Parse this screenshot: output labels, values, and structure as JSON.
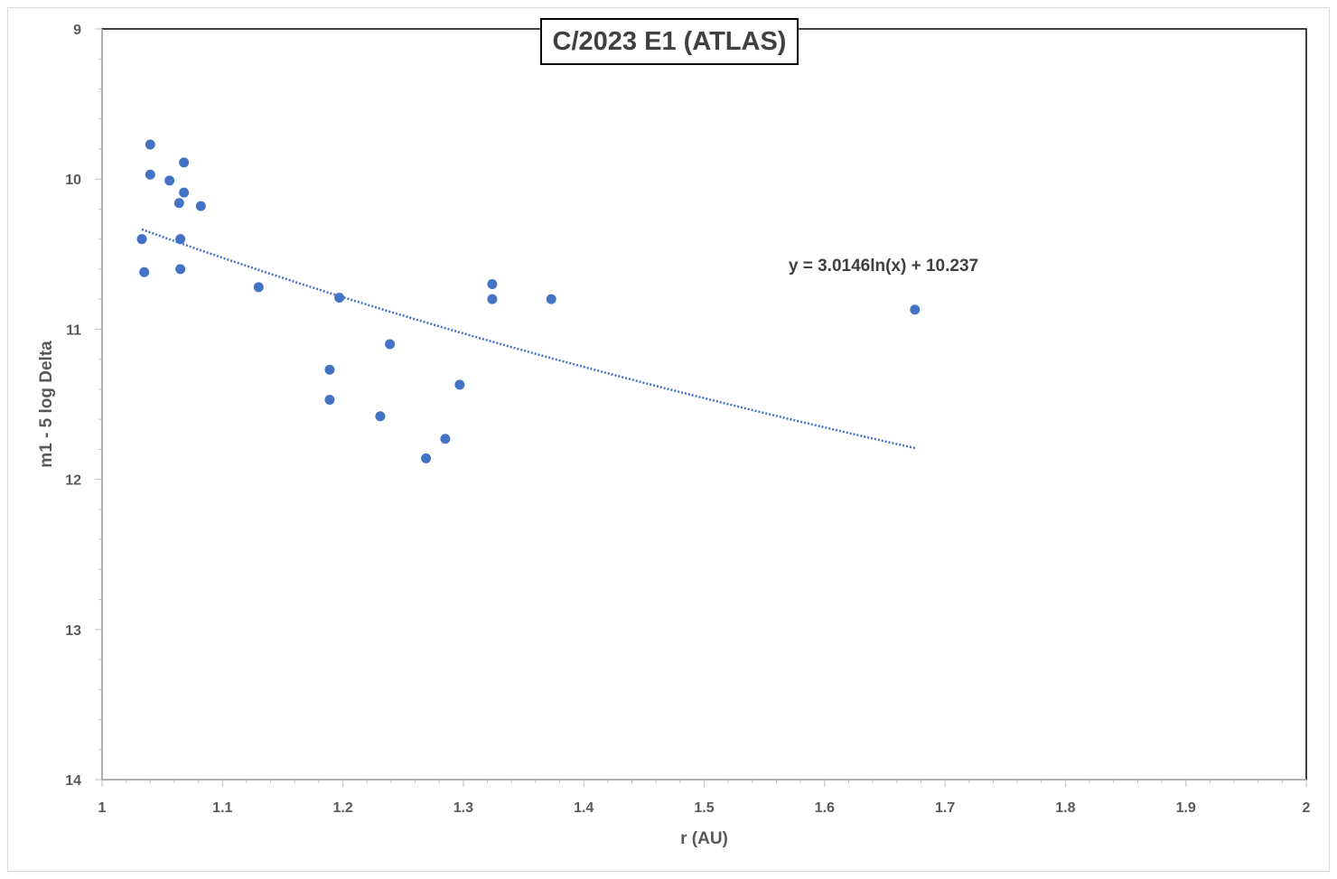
{
  "chart_data": {
    "type": "scatter",
    "title": "C/2023 E1 (ATLAS)",
    "xlabel": "r (AU)",
    "ylabel": "m1 - 5 log Delta",
    "xlim": [
      1,
      2
    ],
    "ylim": [
      9,
      14
    ],
    "y_axis_reversed": true,
    "x_ticks": [
      "1",
      "1.1",
      "1.2",
      "1.3",
      "1.4",
      "1.5",
      "1.6",
      "1.7",
      "1.8",
      "1.9",
      "2"
    ],
    "y_ticks": [
      "9",
      "10",
      "11",
      "12",
      "13",
      "14"
    ],
    "grid": false,
    "legend": "none",
    "point_color": "#4472c4",
    "series": [
      {
        "points": [
          [
            1.04,
            9.77
          ],
          [
            1.04,
            9.97
          ],
          [
            1.056,
            10.01
          ],
          [
            1.068,
            9.89
          ],
          [
            1.068,
            10.09
          ],
          [
            1.064,
            10.16
          ],
          [
            1.082,
            10.18
          ],
          [
            1.033,
            10.4
          ],
          [
            1.065,
            10.4
          ],
          [
            1.035,
            10.62
          ],
          [
            1.065,
            10.6
          ],
          [
            1.13,
            10.72
          ],
          [
            1.197,
            10.79
          ],
          [
            1.189,
            11.27
          ],
          [
            1.189,
            11.47
          ],
          [
            1.239,
            11.1
          ],
          [
            1.231,
            11.58
          ],
          [
            1.269,
            11.86
          ],
          [
            1.285,
            11.73
          ],
          [
            1.297,
            11.37
          ],
          [
            1.324,
            10.7
          ],
          [
            1.324,
            10.8
          ],
          [
            1.373,
            10.8
          ],
          [
            1.675,
            10.87
          ]
        ]
      }
    ],
    "trendline": {
      "type": "logarithmic",
      "equation": "y = 3.0146ln(x) + 10.237",
      "a": 3.0146,
      "b": 10.237,
      "x_range": [
        1.033,
        1.675
      ],
      "color": "#4472c4",
      "style": "dotted"
    }
  }
}
